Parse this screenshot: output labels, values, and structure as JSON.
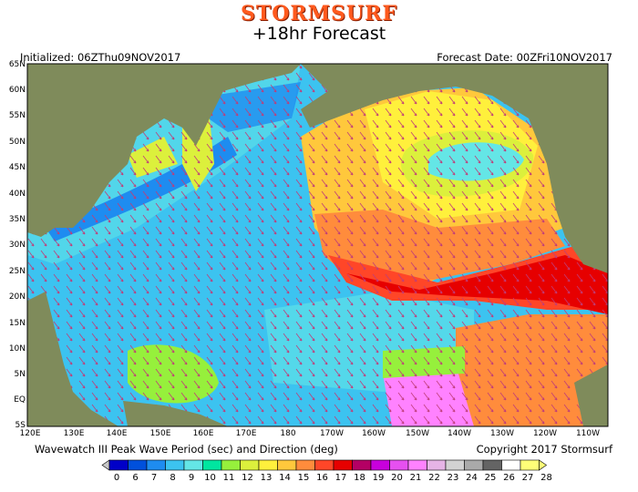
{
  "header": {
    "brand": "STORMSURF",
    "forecast": "+18hr Forecast",
    "initialized": "Initialized: 06ZThu09NOV2017",
    "forecast_date": "Forecast Date: 00ZFri10NOV2017"
  },
  "map": {
    "lat_labels": [
      "65N",
      "60N",
      "55N",
      "50N",
      "45N",
      "40N",
      "35N",
      "30N",
      "25N",
      "20N",
      "15N",
      "10N",
      "5N",
      "EQ",
      "5S"
    ],
    "lon_labels": [
      "120E",
      "130E",
      "140E",
      "150E",
      "160E",
      "170E",
      "180",
      "170W",
      "160W",
      "150W",
      "140W",
      "130W",
      "120W",
      "110W"
    ],
    "colors": {
      "land": "#7f8b5b",
      "ocean_base": "#3cc3f0"
    }
  },
  "footer": {
    "caption": "Wavewatch III Peak Wave Period (sec) and Direction (deg)",
    "copyright": "Copyright 2017 Stormsurf"
  },
  "legend": {
    "ticks": [
      "0",
      "6",
      "7",
      "8",
      "9",
      "10",
      "11",
      "12",
      "13",
      "14",
      "15",
      "16",
      "17",
      "18",
      "19",
      "20",
      "21",
      "22",
      "23",
      "24",
      "25",
      "26",
      "27",
      "28"
    ],
    "colors": [
      "#0000c8",
      "#0050dc",
      "#1e8cf0",
      "#3cc3f0",
      "#64e6e6",
      "#00e6a0",
      "#96f03c",
      "#dcf03c",
      "#fff03c",
      "#ffc83c",
      "#ff8c3c",
      "#ff4628",
      "#e60000",
      "#b40064",
      "#c800dc",
      "#e650f0",
      "#ff82ff",
      "#e6b4e6",
      "#d2d2d2",
      "#aaaaaa",
      "#646464",
      "#ffffff",
      "#ffff78"
    ]
  }
}
